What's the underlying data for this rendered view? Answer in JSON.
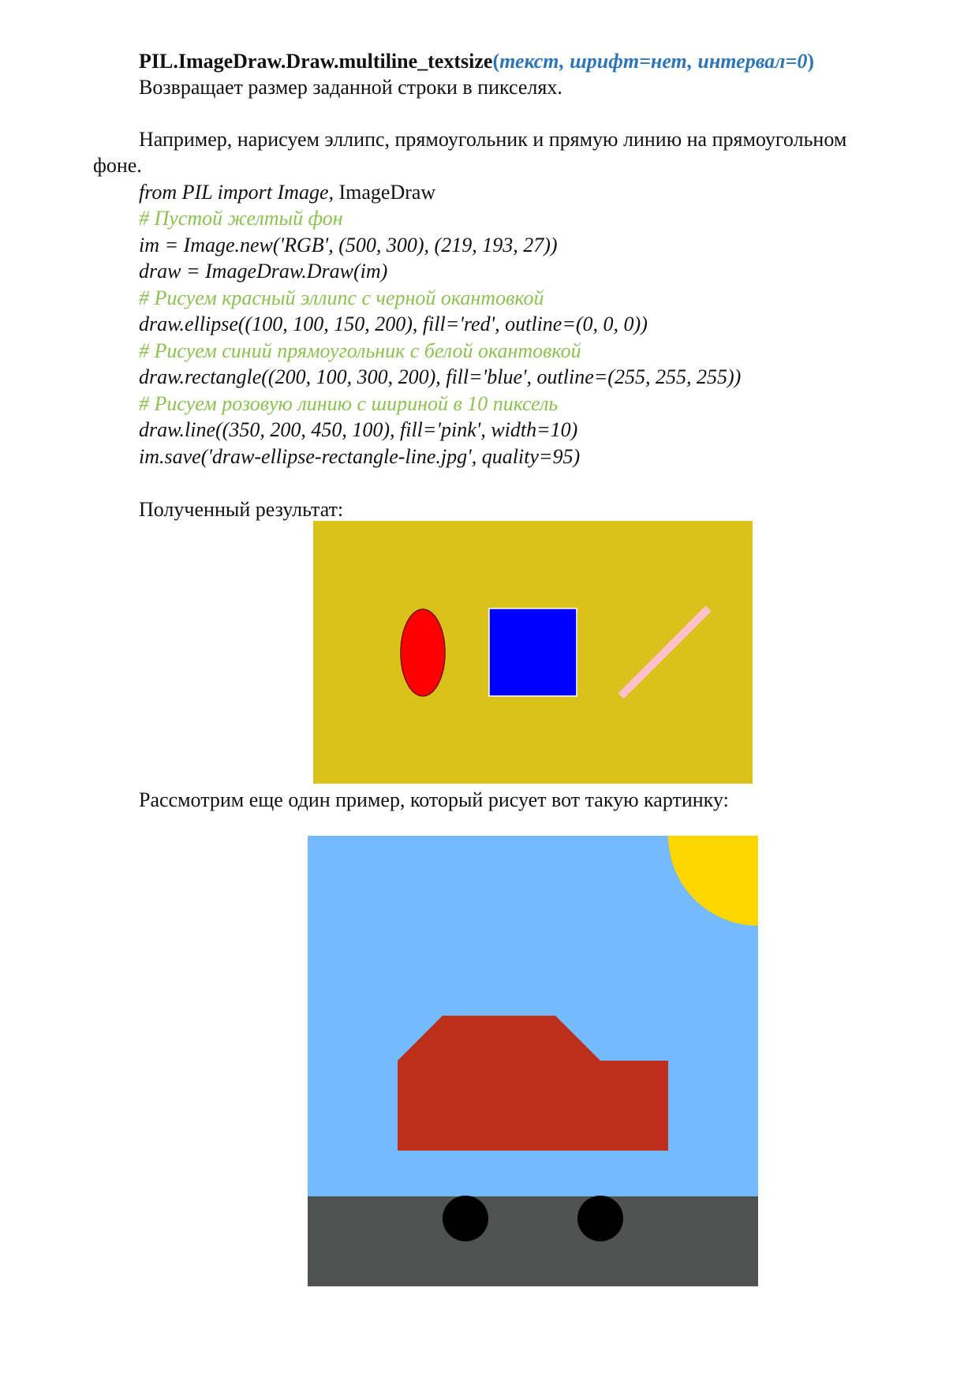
{
  "signature": {
    "name": "PIL.ImageDraw.Draw.multiline_textsize",
    "open_paren": "(",
    "args": "текст, шрифт=нет, интервал=0",
    "close_paren": ")"
  },
  "description": "Возвращает размер заданной строки в пикселях.",
  "example_intro_line1": "Например, нарисуем эллипс, прямоугольник и прямую линию на прямоугольном",
  "example_intro_line2": "фоне.",
  "code": {
    "import_italic": "from PIL import Image,",
    "import_plain": " ImageDraw",
    "comment_bg": " # Пустой желтый фон",
    "new_image": "im = Image.new('RGB', (500, 300), (219, 193, 27))",
    "draw_obj": "draw = ImageDraw.Draw(im)",
    "comment_ellipse": "# Рисуем красный эллипс с черной окантовкой",
    "ellipse": "draw.ellipse((100, 100, 150, 200), fill='red', outline=(0, 0, 0))",
    "comment_rect": " # Рисуем синий прямоугольник с белой окантовкой",
    "rectangle": "draw.rectangle((200, 100, 300, 200), fill='blue', outline=(255, 255, 255))",
    "comment_line": "# Рисуем розовую линию с шириной в 10 пиксель",
    "line": "draw.line((350, 200, 450, 100), fill='pink', width=10)",
    "save": "im.save('draw-ellipse-rectangle-line.jpg', quality=95)"
  },
  "result_label": "Полученный результат:",
  "second_example_label": "Рассмотрим еще один пример, который рисует вот такую картинку:",
  "colors": {
    "result_bg": "#dbc11b",
    "ellipse": "#ff0000",
    "rectangle": "#0000ff",
    "pink_line": "#ffc0cb",
    "sky": "#74bafc",
    "sun": "#ffd700",
    "ground": "#4f5250",
    "car": "#bd2f1b",
    "wheel": "#000000"
  }
}
